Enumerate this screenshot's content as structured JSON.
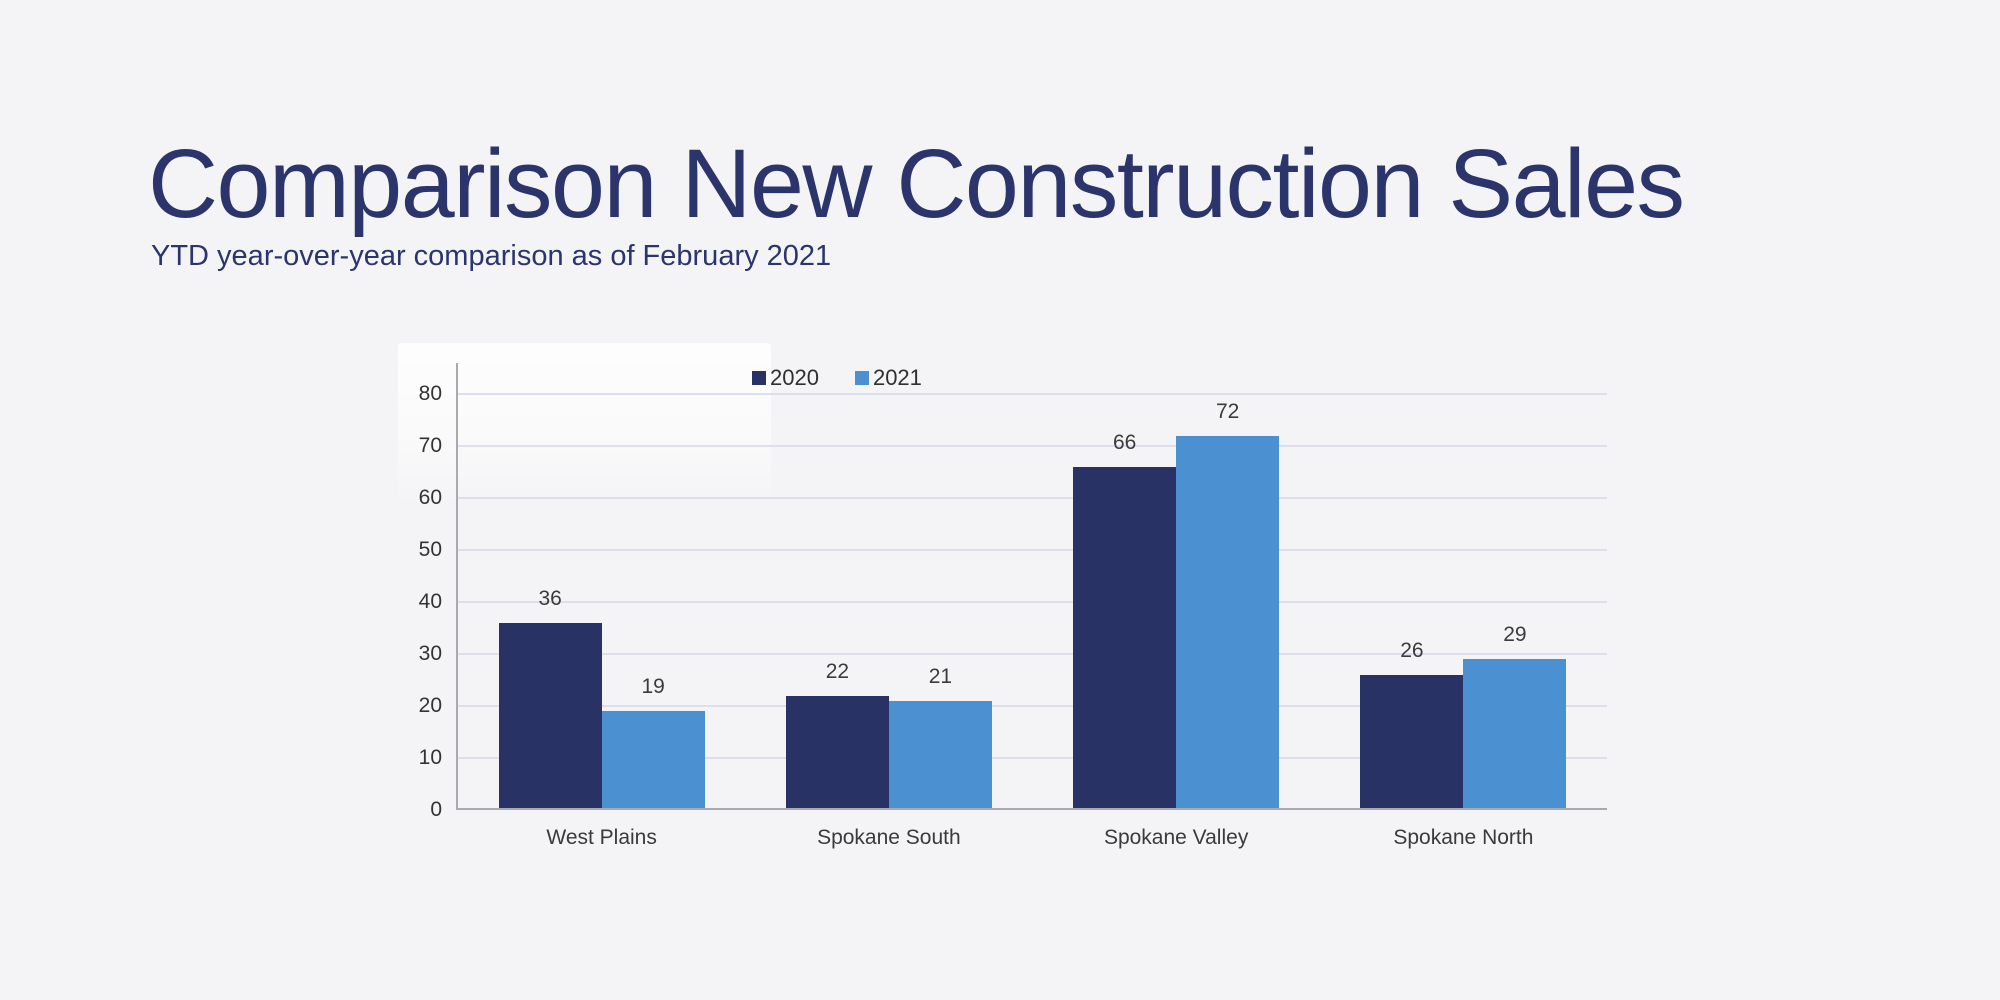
{
  "page": {
    "background_color": "#f4f4f6"
  },
  "header": {
    "title": "Comparison New Construction Sales",
    "subtitle": "YTD year-over-year comparison as of February 2021",
    "text_color": "#2b356c"
  },
  "chart_data": {
    "type": "bar",
    "title": "",
    "categories": [
      "West Plains",
      "Spokane South",
      "Spokane Valley",
      "Spokane North"
    ],
    "series": [
      {
        "name": "2020",
        "color": "#293265",
        "values": [
          36,
          22,
          66,
          26
        ]
      },
      {
        "name": "2021",
        "color": "#4b90d0",
        "values": [
          19,
          21,
          72,
          29
        ]
      }
    ],
    "ylim": [
      0,
      80
    ],
    "yticks": [
      0,
      10,
      20,
      30,
      40,
      50,
      60,
      70,
      80
    ],
    "grid": true,
    "data_labels": true,
    "legend_position": "top",
    "colors": {
      "gridline": "#dde0ec",
      "axis_line": "#a9aaae",
      "tick_text": "#333333",
      "value_text": "#3b3b3b"
    }
  }
}
